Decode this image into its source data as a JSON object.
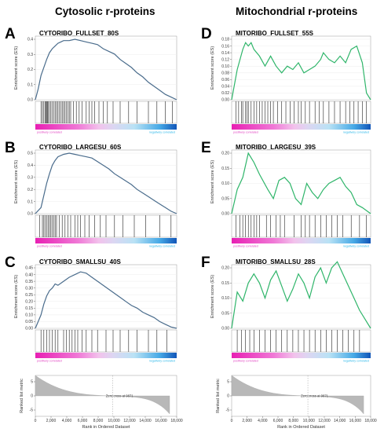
{
  "column_headers": {
    "left": "Cytosolic r-proteins",
    "right": "Mitochondrial r-proteins"
  },
  "labels": {
    "enrichment_ylabel": "Enrichment score (ES)",
    "positively": "positively correlated",
    "negatively": "negatively correlated",
    "ranked_ylabel": "Ranked list metric",
    "xlabel": "Rank in Ordered Dataset",
    "zero_cross": "Zero cross at 9871"
  },
  "colors": {
    "cytosolic_line": "#4a6c8c",
    "mito_line": "#2fb56a",
    "positive_text": "#e040c0",
    "negative_text": "#29b6e8",
    "metric_fill": "#b8b8b8"
  },
  "chart_data": [
    {
      "panel": "A",
      "type": "line",
      "title": "CYTORIBO_FULLSET_80S",
      "ylim": [
        0,
        0.45
      ],
      "yticks": [
        "0.0",
        "0.1",
        "0.2",
        "0.3",
        "0.4"
      ],
      "x": [
        0,
        0.02,
        0.04,
        0.06,
        0.08,
        0.1,
        0.12,
        0.14,
        0.16,
        0.18,
        0.2,
        0.24,
        0.28,
        0.32,
        0.36,
        0.4,
        0.44,
        0.48,
        0.52,
        0.56,
        0.6,
        0.64,
        0.68,
        0.72,
        0.76,
        0.8,
        0.84,
        0.88,
        0.92,
        0.96,
        1.0
      ],
      "values": [
        0,
        0.08,
        0.18,
        0.24,
        0.3,
        0.35,
        0.38,
        0.4,
        0.42,
        0.43,
        0.44,
        0.44,
        0.45,
        0.44,
        0.43,
        0.42,
        0.41,
        0.38,
        0.36,
        0.34,
        0.3,
        0.27,
        0.24,
        0.2,
        0.17,
        0.13,
        0.1,
        0.07,
        0.04,
        0.02,
        0.0
      ],
      "hits": [
        0.04,
        0.05,
        0.06,
        0.07,
        0.075,
        0.08,
        0.085,
        0.09,
        0.1,
        0.11,
        0.12,
        0.13,
        0.14,
        0.15,
        0.16,
        0.17,
        0.18,
        0.19,
        0.2,
        0.21,
        0.22,
        0.23,
        0.24,
        0.25,
        0.27,
        0.29,
        0.31,
        0.33,
        0.36,
        0.38,
        0.4,
        0.42,
        0.45,
        0.48,
        0.51,
        0.55,
        0.6,
        0.66,
        0.72,
        0.8,
        0.86,
        0.92,
        0.97
      ]
    },
    {
      "panel": "B",
      "type": "line",
      "title": "CYTORIBO_LARGESU_60S",
      "ylim": [
        0,
        0.5
      ],
      "yticks": [
        "0.0",
        "0.1",
        "0.2",
        "0.3",
        "0.4",
        "0.5"
      ],
      "x": [
        0,
        0.04,
        0.06,
        0.08,
        0.1,
        0.12,
        0.14,
        0.16,
        0.2,
        0.24,
        0.28,
        0.32,
        0.36,
        0.4,
        0.44,
        0.48,
        0.52,
        0.56,
        0.6,
        0.64,
        0.68,
        0.72,
        0.76,
        0.8,
        0.84,
        0.88,
        0.92,
        0.96,
        1.0
      ],
      "values": [
        0,
        0.05,
        0.15,
        0.25,
        0.33,
        0.4,
        0.44,
        0.47,
        0.49,
        0.5,
        0.49,
        0.48,
        0.47,
        0.46,
        0.43,
        0.4,
        0.37,
        0.33,
        0.3,
        0.27,
        0.24,
        0.2,
        0.17,
        0.14,
        0.11,
        0.08,
        0.05,
        0.02,
        0.0
      ],
      "hits": [
        0.03,
        0.05,
        0.06,
        0.07,
        0.08,
        0.09,
        0.1,
        0.11,
        0.12,
        0.13,
        0.14,
        0.15,
        0.17,
        0.19,
        0.21,
        0.23,
        0.25,
        0.28,
        0.3,
        0.32,
        0.35,
        0.38,
        0.42,
        0.46,
        0.5,
        0.56,
        0.62,
        0.7,
        0.78,
        0.88,
        0.96
      ]
    },
    {
      "panel": "C",
      "type": "line",
      "title": "CYTORIBO_SMALLSU_40S",
      "ylim": [
        0,
        0.45
      ],
      "yticks": [
        "0.00",
        "0.05",
        "0.10",
        "0.15",
        "0.20",
        "0.25",
        "0.30",
        "0.35",
        "0.40",
        "0.45"
      ],
      "x": [
        0,
        0.04,
        0.06,
        0.08,
        0.1,
        0.12,
        0.14,
        0.16,
        0.2,
        0.24,
        0.28,
        0.32,
        0.36,
        0.4,
        0.44,
        0.48,
        0.52,
        0.56,
        0.6,
        0.64,
        0.68,
        0.72,
        0.76,
        0.8,
        0.84,
        0.88,
        0.92,
        0.96,
        1.0
      ],
      "values": [
        0,
        0.1,
        0.18,
        0.24,
        0.28,
        0.3,
        0.33,
        0.32,
        0.35,
        0.38,
        0.4,
        0.42,
        0.41,
        0.38,
        0.35,
        0.32,
        0.29,
        0.26,
        0.23,
        0.2,
        0.17,
        0.15,
        0.12,
        0.1,
        0.08,
        0.05,
        0.03,
        0.01,
        0.0
      ],
      "hits": [
        0.04,
        0.06,
        0.08,
        0.1,
        0.12,
        0.14,
        0.16,
        0.2,
        0.22,
        0.24,
        0.26,
        0.28,
        0.3,
        0.33,
        0.36,
        0.4,
        0.44,
        0.5,
        0.55,
        0.6,
        0.66,
        0.72,
        0.8,
        0.86,
        0.93
      ]
    },
    {
      "panel": "D",
      "type": "line",
      "title": "MITORIBO_FULLSET_55S",
      "ylim": [
        0,
        0.18
      ],
      "yticks": [
        "0.00",
        "0.02",
        "0.04",
        "0.06",
        "0.08",
        "0.10",
        "0.12",
        "0.14",
        "0.16",
        "0.18"
      ],
      "x": [
        0,
        0.04,
        0.08,
        0.1,
        0.12,
        0.14,
        0.16,
        0.2,
        0.24,
        0.28,
        0.32,
        0.36,
        0.4,
        0.44,
        0.48,
        0.52,
        0.56,
        0.6,
        0.64,
        0.66,
        0.7,
        0.74,
        0.78,
        0.82,
        0.86,
        0.9,
        0.94,
        0.97,
        1.0
      ],
      "values": [
        0,
        0.09,
        0.15,
        0.17,
        0.16,
        0.17,
        0.15,
        0.13,
        0.1,
        0.13,
        0.1,
        0.08,
        0.1,
        0.09,
        0.11,
        0.08,
        0.09,
        0.1,
        0.12,
        0.14,
        0.12,
        0.11,
        0.13,
        0.11,
        0.15,
        0.16,
        0.11,
        0.02,
        0.0
      ],
      "hits": [
        0.03,
        0.05,
        0.07,
        0.08,
        0.1,
        0.11,
        0.12,
        0.14,
        0.16,
        0.18,
        0.2,
        0.22,
        0.24,
        0.26,
        0.28,
        0.3,
        0.33,
        0.36,
        0.39,
        0.42,
        0.45,
        0.48,
        0.5,
        0.53,
        0.56,
        0.6,
        0.63,
        0.66,
        0.7,
        0.74,
        0.78,
        0.82,
        0.85,
        0.88,
        0.91,
        0.94,
        0.97
      ]
    },
    {
      "panel": "E",
      "type": "line",
      "title": "MITORIBO_LARGESU_39S",
      "ylim": [
        0,
        0.2
      ],
      "yticks": [
        "0.00",
        "0.05",
        "0.10",
        "0.15",
        "0.20"
      ],
      "x": [
        0,
        0.04,
        0.08,
        0.12,
        0.16,
        0.2,
        0.26,
        0.3,
        0.34,
        0.38,
        0.42,
        0.46,
        0.5,
        0.54,
        0.58,
        0.62,
        0.66,
        0.7,
        0.74,
        0.78,
        0.82,
        0.86,
        0.9,
        0.94,
        0.97,
        1.0
      ],
      "values": [
        0,
        0.08,
        0.12,
        0.2,
        0.17,
        0.13,
        0.08,
        0.05,
        0.11,
        0.12,
        0.1,
        0.05,
        0.03,
        0.1,
        0.07,
        0.05,
        0.08,
        0.1,
        0.11,
        0.12,
        0.09,
        0.07,
        0.03,
        0.02,
        0.01,
        0.0
      ],
      "hits": [
        0.03,
        0.06,
        0.08,
        0.1,
        0.12,
        0.14,
        0.16,
        0.18,
        0.2,
        0.25,
        0.28,
        0.32,
        0.35,
        0.38,
        0.45,
        0.5,
        0.53,
        0.56,
        0.6,
        0.64,
        0.68,
        0.72,
        0.76,
        0.8,
        0.86,
        0.92,
        0.97
      ]
    },
    {
      "panel": "F",
      "type": "line",
      "title": "MITORIBO_SMALLSU_28S",
      "ylim": [
        0,
        0.2
      ],
      "yticks": [
        "0.00",
        "0.05",
        "0.10",
        "0.15",
        "0.20"
      ],
      "x": [
        0,
        0.04,
        0.08,
        0.12,
        0.16,
        0.2,
        0.24,
        0.28,
        0.32,
        0.36,
        0.4,
        0.44,
        0.48,
        0.52,
        0.56,
        0.6,
        0.64,
        0.68,
        0.72,
        0.76,
        0.8,
        0.84,
        0.88,
        0.92,
        0.96,
        1.0
      ],
      "values": [
        0,
        0.12,
        0.09,
        0.15,
        0.18,
        0.15,
        0.1,
        0.16,
        0.19,
        0.14,
        0.09,
        0.13,
        0.18,
        0.15,
        0.1,
        0.17,
        0.2,
        0.15,
        0.2,
        0.22,
        0.18,
        0.14,
        0.1,
        0.06,
        0.03,
        0.0
      ],
      "hits": [
        0.04,
        0.07,
        0.1,
        0.13,
        0.16,
        0.2,
        0.24,
        0.28,
        0.32,
        0.36,
        0.4,
        0.44,
        0.48,
        0.52,
        0.56,
        0.6,
        0.64,
        0.68,
        0.72,
        0.76,
        0.8,
        0.84,
        0.88,
        0.92
      ]
    },
    {
      "panel": "metric-left",
      "type": "area",
      "xlabel": "Rank in Ordered Dataset",
      "ylabel": "Ranked list metric",
      "xlim": [
        0,
        18000
      ],
      "xticks": [
        "0",
        "2,000",
        "4,000",
        "6,000",
        "8,000",
        "10,000",
        "12,000",
        "14,000",
        "16,000",
        "18,000"
      ],
      "yticks": [
        "-5",
        "0",
        "5"
      ],
      "zero_cross": 9871
    },
    {
      "panel": "metric-right",
      "type": "area",
      "xlabel": "Rank in Ordered Dataset",
      "ylabel": "Ranked list metric",
      "xlim": [
        0,
        18000
      ],
      "xticks": [
        "0",
        "2,000",
        "4,000",
        "6,000",
        "8,000",
        "10,000",
        "12,000",
        "14,000",
        "16,000",
        "18,000"
      ],
      "yticks": [
        "-5",
        "0",
        "5"
      ],
      "zero_cross": 9871
    }
  ]
}
